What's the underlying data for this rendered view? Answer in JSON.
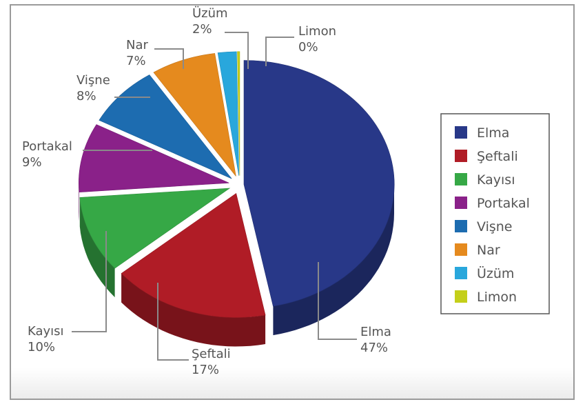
{
  "chart_data": {
    "type": "pie",
    "categories": [
      "Elma",
      "Şeftali",
      "Kayısı",
      "Portakal",
      "Vişne",
      "Nar",
      "Üzüm",
      "Limon"
    ],
    "values": [
      47,
      17,
      10,
      9,
      8,
      7,
      2,
      0
    ],
    "value_labels": [
      "47%",
      "17%",
      "10%",
      "9%",
      "8%",
      "7%",
      "2%",
      "0%"
    ],
    "colors": [
      "#283888",
      "#b01c26",
      "#36a846",
      "#8a2189",
      "#1d6cb0",
      "#e58a1e",
      "#29a7dc",
      "#c4cf1a"
    ],
    "style": "3d-exploded",
    "legend_position": "right",
    "grid": false
  }
}
